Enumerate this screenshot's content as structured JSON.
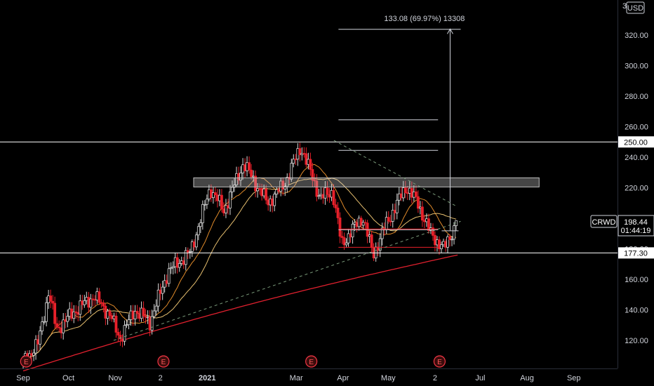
{
  "chart_data": {
    "type": "candlestick",
    "symbol": "CRWD",
    "currency": "USD",
    "last_price": 198.44,
    "countdown": "01:44:19",
    "ylim": [
      100,
      340
    ],
    "y_ticks": [
      120,
      140,
      160,
      180,
      200,
      220,
      240,
      260,
      280,
      300,
      320
    ],
    "y_tick_labels": [
      "120.00",
      "140.00",
      "160.00",
      "180.00",
      "200.00",
      "220.00",
      "240.00",
      "260.00",
      "280.00",
      "300.00",
      "320.00"
    ],
    "y_top_partial_label": "34",
    "x_ticks": [
      {
        "label": "Sep",
        "day": 0
      },
      {
        "label": "Oct",
        "day": 30
      },
      {
        "label": "Nov",
        "day": 61
      },
      {
        "label": "2",
        "day": 91
      },
      {
        "label": "2021",
        "day": 122
      },
      {
        "label": "Mar",
        "day": 181
      },
      {
        "label": "Apr",
        "day": 212
      },
      {
        "label": "May",
        "day": 242
      },
      {
        "label": "2",
        "day": 273
      },
      {
        "label": "Jul",
        "day": 303
      },
      {
        "label": "Aug",
        "day": 334
      },
      {
        "label": "Sep",
        "day": 365
      }
    ],
    "earnings_markers": [
      {
        "label": "E",
        "day": 2
      },
      {
        "label": "E",
        "day": 93
      },
      {
        "label": "E",
        "day": 191
      },
      {
        "label": "E",
        "day": 276
      }
    ],
    "horizontal_levels": [
      {
        "price": 250.0,
        "label": "250.00"
      },
      {
        "price": 177.3,
        "label": "177.30"
      }
    ],
    "measure": {
      "label": "133.08 (69.97%) 13308",
      "from_price": 192,
      "to_price": 324
    },
    "fib_levels": [
      {
        "price": 323.8
      },
      {
        "price": 264.5
      },
      {
        "price": 244.5
      },
      {
        "price": 192.5
      }
    ],
    "resistance_zone": {
      "low": 220.5,
      "high": 226.5
    },
    "support_lines": [
      {
        "price": 193
      },
      {
        "price": 181
      }
    ],
    "trendline_upper": {
      "from": [
        206,
        251
      ],
      "to": [
        287,
        208
      ]
    },
    "trendline_lower": {
      "from": [
        60,
        120
      ],
      "to": [
        290,
        198
      ]
    },
    "key_prices": [
      {
        "day": 0,
        "close": 106
      },
      {
        "day": 10,
        "close": 118
      },
      {
        "day": 17,
        "close": 152
      },
      {
        "day": 22,
        "close": 127
      },
      {
        "day": 35,
        "close": 140
      },
      {
        "day": 47,
        "close": 149
      },
      {
        "day": 58,
        "close": 136
      },
      {
        "day": 64,
        "close": 121
      },
      {
        "day": 74,
        "close": 140
      },
      {
        "day": 84,
        "close": 132
      },
      {
        "day": 96,
        "close": 165
      },
      {
        "day": 111,
        "close": 178
      },
      {
        "day": 124,
        "close": 220
      },
      {
        "day": 133,
        "close": 205
      },
      {
        "day": 146,
        "close": 236
      },
      {
        "day": 162,
        "close": 210
      },
      {
        "day": 173,
        "close": 222
      },
      {
        "day": 184,
        "close": 247
      },
      {
        "day": 197,
        "close": 213
      },
      {
        "day": 205,
        "close": 218
      },
      {
        "day": 211,
        "close": 183
      },
      {
        "day": 225,
        "close": 201
      },
      {
        "day": 232,
        "close": 176
      },
      {
        "day": 241,
        "close": 197
      },
      {
        "day": 254,
        "close": 221
      },
      {
        "day": 262,
        "close": 209
      },
      {
        "day": 270,
        "close": 190
      },
      {
        "day": 279,
        "close": 180
      },
      {
        "day": 288,
        "close": 198.44
      }
    ]
  }
}
